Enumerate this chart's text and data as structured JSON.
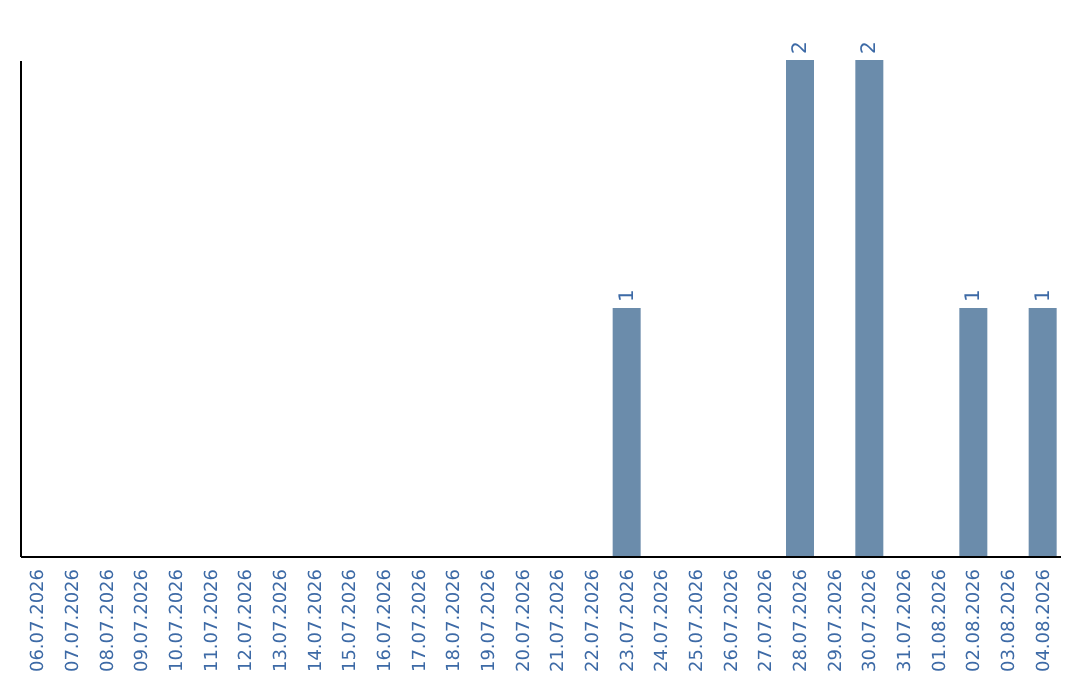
{
  "chart_data": {
    "type": "bar",
    "categories": [
      "06.07.2026",
      "07.07.2026",
      "08.07.2026",
      "09.07.2026",
      "10.07.2026",
      "11.07.2026",
      "12.07.2026",
      "13.07.2026",
      "14.07.2026",
      "15.07.2026",
      "16.07.2026",
      "17.07.2026",
      "18.07.2026",
      "19.07.2026",
      "20.07.2026",
      "21.07.2026",
      "22.07.2026",
      "23.07.2026",
      "24.07.2026",
      "25.07.2026",
      "26.07.2026",
      "27.07.2026",
      "28.07.2026",
      "29.07.2026",
      "30.07.2026",
      "31.07.2026",
      "01.08.2026",
      "02.08.2026",
      "03.08.2026",
      "04.08.2026"
    ],
    "values": [
      null,
      null,
      null,
      null,
      null,
      null,
      null,
      null,
      null,
      null,
      null,
      null,
      null,
      null,
      null,
      null,
      null,
      1,
      null,
      null,
      null,
      null,
      2,
      null,
      2,
      null,
      null,
      1,
      null,
      1
    ],
    "color": "#6b8cab",
    "data_labels": true,
    "grid": false,
    "tick_labels": "x"
  }
}
